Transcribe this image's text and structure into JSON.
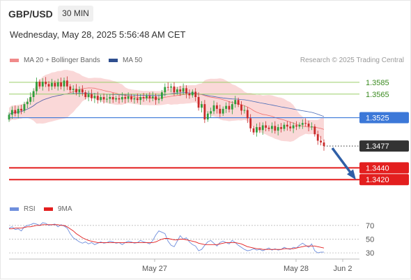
{
  "header": {
    "symbol": "GBP/USD",
    "timeframe": "30 MIN",
    "datetime": "Wednesday, May 28, 2025 5:56:48 AM CET"
  },
  "legend": {
    "ma20": "MA 20 + Bollinger Bands",
    "ma50": "MA 50",
    "credit": "Research © 2025 Trading Central",
    "rsi": "RSI",
    "ma9": "9MA"
  },
  "colors": {
    "up": "#2e9e3c",
    "down": "#c92a2a",
    "band": "#f8c8c8",
    "ma20": "#f06f6f",
    "ma50": "#4b6cb7",
    "support": "#e31e1e",
    "resistance": "#9ccf6a",
    "pivot": "#3c78d8",
    "last": "#333333",
    "rsi": "#6f8fdd",
    "rsiMa": "#e31e1e",
    "arrow": "#2f5fa7"
  },
  "chart_data": [
    {
      "type": "candlestick",
      "title": "GBP/USD 30 MIN",
      "ylim": [
        1.338,
        1.3605
      ],
      "x_labels": [
        "May 27",
        "May 28",
        "Jun 2"
      ],
      "levels": [
        {
          "label": "1.3585",
          "value": 1.3585,
          "kind": "resistance"
        },
        {
          "label": "1.3565",
          "value": 1.3565,
          "kind": "resistance"
        },
        {
          "label": "1.3525",
          "value": 1.3525,
          "kind": "pivot"
        },
        {
          "label": "1.3477",
          "value": 1.3477,
          "kind": "last"
        },
        {
          "label": "1.3440",
          "value": 1.344,
          "kind": "support"
        },
        {
          "label": "1.3420",
          "value": 1.342,
          "kind": "support"
        }
      ],
      "close": [
        1.353,
        1.3538,
        1.3532,
        1.354,
        1.3537,
        1.3548,
        1.3552,
        1.356,
        1.357,
        1.3586,
        1.3578,
        1.3586,
        1.3582,
        1.3578,
        1.3584,
        1.3578,
        1.3585,
        1.3578,
        1.3588,
        1.3578,
        1.3572,
        1.3574,
        1.3568,
        1.3573,
        1.3568,
        1.356,
        1.3565,
        1.3558,
        1.3562,
        1.3555,
        1.356,
        1.3556,
        1.3557,
        1.356,
        1.3556,
        1.3558,
        1.3556,
        1.356,
        1.3557,
        1.3561,
        1.3556,
        1.3558,
        1.3555,
        1.356,
        1.3558,
        1.3562,
        1.3558,
        1.3561,
        1.3555,
        1.3557,
        1.3568,
        1.3577,
        1.3576,
        1.3578,
        1.3568,
        1.3573,
        1.3569,
        1.3575,
        1.3566,
        1.3563,
        1.3569,
        1.356,
        1.3542,
        1.3548,
        1.3522,
        1.3532,
        1.3536,
        1.3546,
        1.354,
        1.3532,
        1.354,
        1.3545,
        1.3539,
        1.3548,
        1.3555,
        1.3547,
        1.3537,
        1.3538,
        1.3524,
        1.3507,
        1.35,
        1.3509,
        1.3504,
        1.3512,
        1.3508,
        1.3506,
        1.3511,
        1.3503,
        1.3509,
        1.3506,
        1.3513,
        1.351,
        1.3507,
        1.3512,
        1.351,
        1.3513,
        1.3516,
        1.3515,
        1.351,
        1.351,
        1.3497,
        1.3486,
        1.3483,
        1.3477
      ],
      "series": [
        {
          "name": "MA 20 + Bollinger Bands"
        },
        {
          "name": "MA 50"
        }
      ]
    },
    {
      "type": "line",
      "ylim": [
        25,
        80
      ],
      "y_ticks": [
        70,
        50,
        30
      ],
      "series": [
        {
          "name": "RSI",
          "values": [
            66,
            68,
            64,
            65,
            62,
            68,
            70,
            71,
            73,
            72,
            70,
            74,
            73,
            70,
            71,
            72,
            68,
            71,
            69,
            66,
            58,
            52,
            49,
            46,
            44,
            46,
            43,
            45,
            42,
            44,
            46,
            44,
            45,
            47,
            46,
            44,
            45,
            42,
            45,
            47,
            46,
            44,
            45,
            48,
            46,
            45,
            43,
            48,
            56,
            62,
            60,
            58,
            47,
            41,
            39,
            47,
            55,
            50,
            52,
            46,
            42,
            40,
            33,
            35,
            41,
            46,
            48,
            44,
            40,
            45,
            47,
            45,
            43,
            48,
            45,
            41,
            38,
            35,
            33,
            34,
            36,
            34,
            35,
            33,
            35,
            37,
            34,
            36,
            34,
            35,
            38,
            36,
            35,
            38,
            37,
            41,
            44,
            41,
            38,
            43,
            33,
            30,
            31,
            31
          ]
        },
        {
          "name": "9MA",
          "values": [
            65,
            65,
            66,
            66,
            66,
            67,
            68,
            68,
            69,
            70,
            70,
            71,
            71,
            71,
            71,
            71,
            71,
            70,
            70,
            68,
            65,
            62,
            58,
            55,
            52,
            50,
            48,
            47,
            46,
            45,
            45,
            45,
            45,
            45,
            45,
            45,
            45,
            45,
            45,
            45,
            45,
            45,
            45,
            45,
            45,
            45,
            45,
            45,
            46,
            48,
            50,
            51,
            51,
            50,
            49,
            49,
            50,
            50,
            49,
            48,
            47,
            46,
            44,
            43,
            42,
            42,
            42,
            42,
            42,
            43,
            44,
            45,
            45,
            45,
            45,
            44,
            43,
            41,
            39,
            38,
            37,
            36,
            36,
            35,
            35,
            35,
            35,
            35,
            35,
            35,
            36,
            36,
            36,
            36,
            37,
            38,
            39,
            40,
            40,
            40,
            40,
            39,
            38,
            37
          ]
        }
      ]
    }
  ]
}
